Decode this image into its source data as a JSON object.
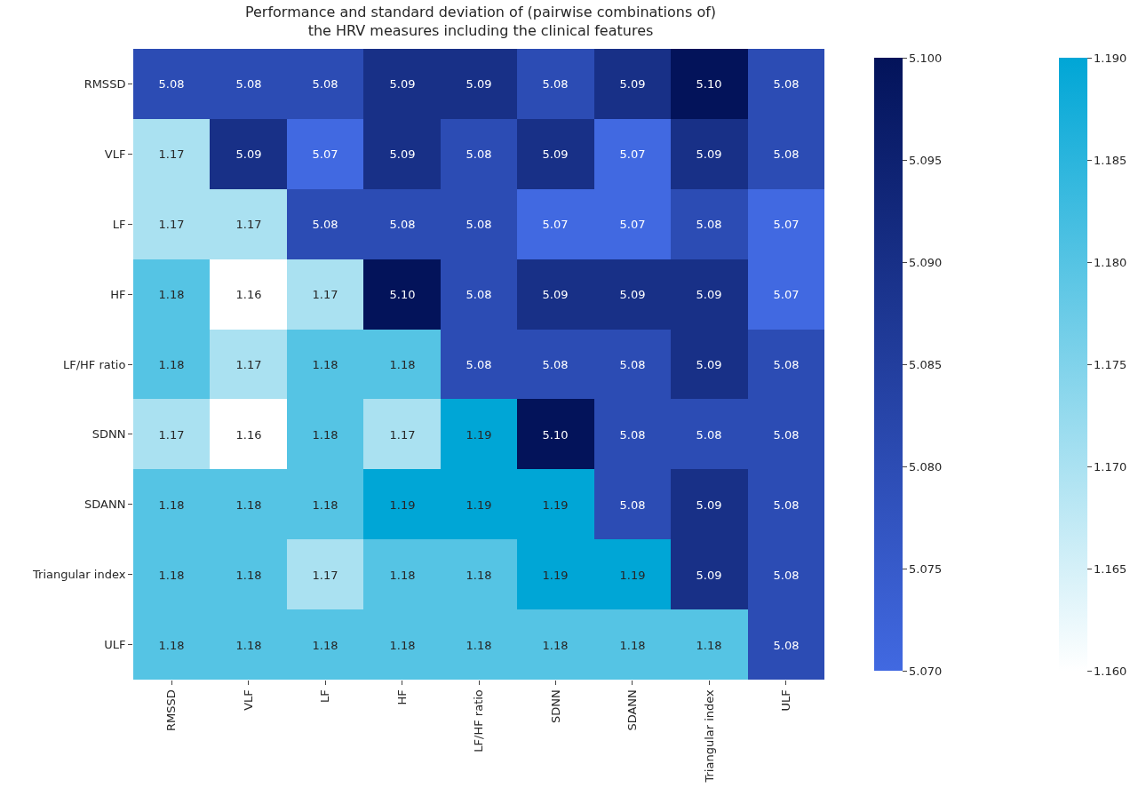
{
  "chart_data": [
    {
      "type": "heatmap",
      "title": "Performance and standard deviation of (pairwise combinations of)\nthe HRV measures including the clinical features",
      "categories": [
        "RMSSD",
        "VLF",
        "LF",
        "HF",
        "LF/HF ratio",
        "SDNN",
        "SDANN",
        "Triangular index",
        "ULF"
      ],
      "y_categories": [
        "RMSSD",
        "VLF",
        "LF",
        "HF",
        "LF/HF ratio",
        "SDNN",
        "SDANN",
        "Triangular index",
        "ULF"
      ],
      "data_labels": true,
      "clim": [
        5.07,
        5.1
      ],
      "cticks": [
        {
          "value": 5.07,
          "label": "5.070"
        },
        {
          "value": 5.075,
          "label": "5.075"
        },
        {
          "value": 5.08,
          "label": "5.080"
        },
        {
          "value": 5.085,
          "label": "5.085"
        },
        {
          "value": 5.09,
          "label": "5.090"
        },
        {
          "value": 5.095,
          "label": "5.095"
        },
        {
          "value": 5.1,
          "label": "5.100"
        }
      ],
      "cells": [
        [
          5.08,
          5.08,
          5.08,
          5.09,
          5.09,
          5.08,
          5.09,
          5.1,
          5.08
        ],
        [
          null,
          5.09,
          5.07,
          5.09,
          5.08,
          5.09,
          5.07,
          5.09,
          5.08
        ],
        [
          null,
          null,
          5.08,
          5.08,
          5.08,
          5.07,
          5.07,
          5.08,
          5.07
        ],
        [
          null,
          null,
          null,
          5.1,
          5.08,
          5.09,
          5.09,
          5.09,
          5.07
        ],
        [
          null,
          null,
          null,
          null,
          5.08,
          5.08,
          5.08,
          5.09,
          5.08
        ],
        [
          null,
          null,
          null,
          null,
          null,
          5.1,
          5.08,
          5.08,
          5.08
        ],
        [
          null,
          null,
          null,
          null,
          null,
          null,
          5.08,
          5.09,
          5.08
        ],
        [
          null,
          null,
          null,
          null,
          null,
          null,
          null,
          5.09,
          5.08
        ],
        [
          null,
          null,
          null,
          null,
          null,
          null,
          null,
          null,
          5.08
        ]
      ],
      "cell_labels": [
        [
          "5.08",
          "5.08",
          "5.08",
          "5.09",
          "5.09",
          "5.08",
          "5.09",
          "5.10",
          "5.08"
        ],
        [
          null,
          "5.09",
          "5.07",
          "5.09",
          "5.08",
          "5.09",
          "5.07",
          "5.09",
          "5.08"
        ],
        [
          null,
          null,
          "5.08",
          "5.08",
          "5.08",
          "5.07",
          "5.07",
          "5.08",
          "5.07"
        ],
        [
          null,
          null,
          null,
          "5.10",
          "5.08",
          "5.09",
          "5.09",
          "5.09",
          "5.07"
        ],
        [
          null,
          null,
          null,
          null,
          "5.08",
          "5.08",
          "5.08",
          "5.09",
          "5.08"
        ],
        [
          null,
          null,
          null,
          null,
          null,
          "5.10",
          "5.08",
          "5.08",
          "5.08"
        ],
        [
          null,
          null,
          null,
          null,
          null,
          null,
          "5.08",
          "5.09",
          "5.08"
        ],
        [
          null,
          null,
          null,
          null,
          null,
          null,
          null,
          "5.09",
          "5.08"
        ],
        [
          null,
          null,
          null,
          null,
          null,
          null,
          null,
          null,
          "5.08"
        ]
      ]
    },
    {
      "type": "heatmap",
      "categories": [
        "RMSSD",
        "VLF",
        "LF",
        "HF",
        "LF/HF ratio",
        "SDNN",
        "SDANN",
        "Triangular index",
        "ULF"
      ],
      "y_categories": [
        "RMSSD",
        "VLF",
        "LF",
        "HF",
        "LF/HF ratio",
        "SDNN",
        "SDANN",
        "Triangular index",
        "ULF"
      ],
      "tick_labels": false,
      "data_labels": true,
      "clim": [
        1.16,
        1.19
      ],
      "cticks": [
        {
          "value": 1.16,
          "label": "1.160"
        },
        {
          "value": 1.165,
          "label": "1.165"
        },
        {
          "value": 1.17,
          "label": "1.170"
        },
        {
          "value": 1.175,
          "label": "1.175"
        },
        {
          "value": 1.18,
          "label": "1.180"
        },
        {
          "value": 1.185,
          "label": "1.185"
        },
        {
          "value": 1.19,
          "label": "1.190"
        }
      ],
      "cells": [
        [
          null,
          null,
          null,
          null,
          null,
          null,
          null,
          null,
          null
        ],
        [
          1.17,
          null,
          null,
          null,
          null,
          null,
          null,
          null,
          null
        ],
        [
          1.17,
          1.17,
          null,
          null,
          null,
          null,
          null,
          null,
          null
        ],
        [
          1.18,
          1.16,
          1.17,
          null,
          null,
          null,
          null,
          null,
          null
        ],
        [
          1.18,
          1.17,
          1.18,
          1.18,
          null,
          null,
          null,
          null,
          null
        ],
        [
          1.17,
          1.16,
          1.18,
          1.17,
          1.19,
          null,
          null,
          null,
          null
        ],
        [
          1.18,
          1.18,
          1.18,
          1.19,
          1.19,
          1.19,
          null,
          null,
          null
        ],
        [
          1.18,
          1.18,
          1.17,
          1.18,
          1.18,
          1.19,
          1.19,
          null,
          null
        ],
        [
          1.18,
          1.18,
          1.18,
          1.18,
          1.18,
          1.18,
          1.18,
          1.18,
          null
        ]
      ]
    }
  ]
}
